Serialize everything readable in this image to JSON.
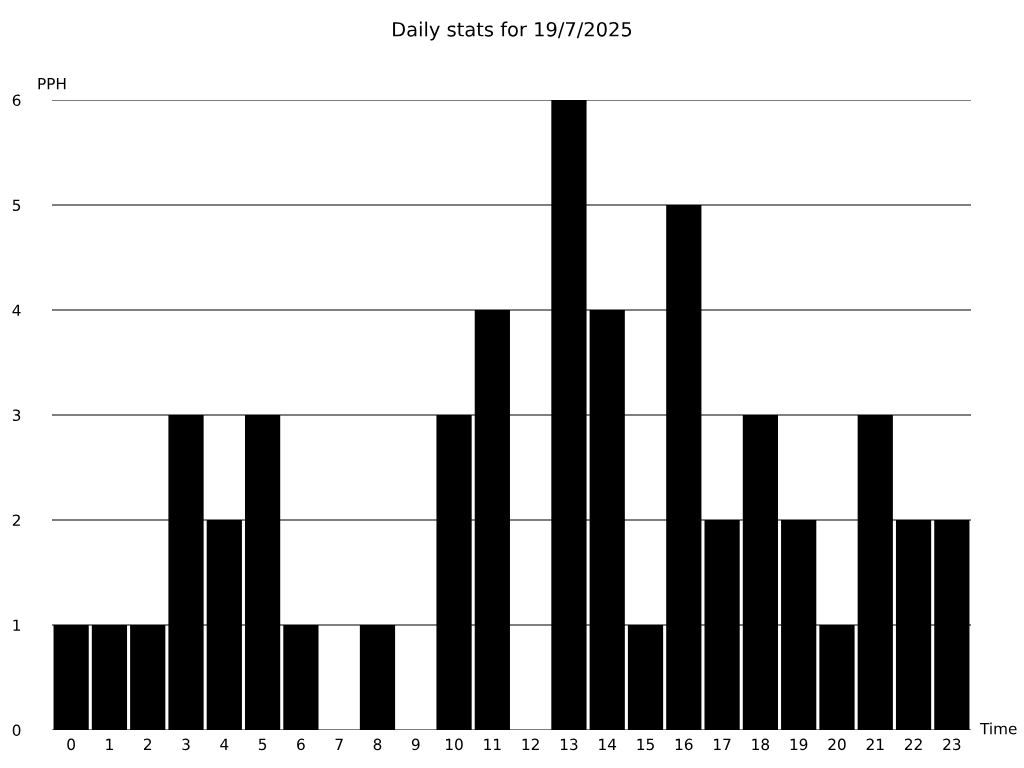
{
  "chart_data": {
    "type": "bar",
    "title": "Daily stats for 19/7/2025",
    "xlabel": "Time",
    "ylabel": "PPH",
    "categories": [
      "0",
      "1",
      "2",
      "3",
      "4",
      "5",
      "6",
      "7",
      "8",
      "9",
      "10",
      "11",
      "12",
      "13",
      "14",
      "15",
      "16",
      "17",
      "18",
      "19",
      "20",
      "21",
      "22",
      "23"
    ],
    "values": [
      1,
      1,
      1,
      3,
      2,
      3,
      1,
      0,
      1,
      0,
      3,
      4,
      0,
      6,
      4,
      1,
      5,
      2,
      3,
      2,
      1,
      3,
      2,
      2
    ],
    "color": "#000000",
    "ylim": [
      0,
      6
    ],
    "yticks": [
      0,
      1,
      2,
      3,
      4,
      5,
      6
    ],
    "grid": "y",
    "legend": false
  }
}
